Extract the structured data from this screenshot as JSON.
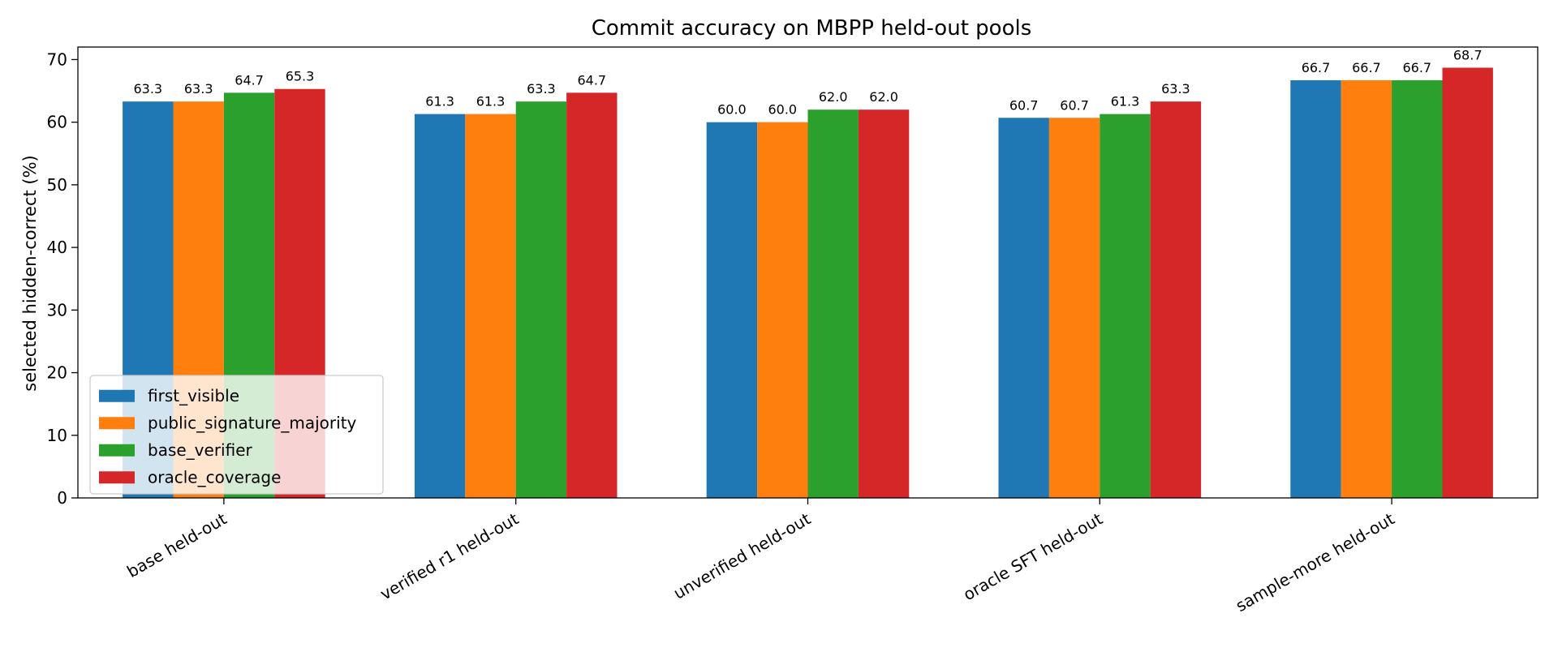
{
  "chart_data": {
    "type": "bar",
    "title": "Commit accuracy on MBPP held-out pools",
    "xlabel": "",
    "ylabel": "selected hidden-correct (%)",
    "ylim": [
      0,
      72
    ],
    "yticks": [
      0,
      10,
      20,
      30,
      40,
      50,
      60,
      70
    ],
    "grid": false,
    "legend_position": "lower-left",
    "categories": [
      "base held-out",
      "verified r1 held-out",
      "unverified held-out",
      "oracle SFT held-out",
      "sample-more held-out"
    ],
    "series": [
      {
        "name": "first_visible",
        "color": "#1f77b4",
        "values": [
          63.3,
          61.3,
          60.0,
          60.7,
          66.7
        ]
      },
      {
        "name": "public_signature_majority",
        "color": "#ff7f0e",
        "values": [
          63.3,
          61.3,
          60.0,
          60.7,
          66.7
        ]
      },
      {
        "name": "base_verifier",
        "color": "#2ca02c",
        "values": [
          64.7,
          63.3,
          62.0,
          61.3,
          66.7
        ]
      },
      {
        "name": "oracle_coverage",
        "color": "#d62728",
        "values": [
          65.3,
          64.7,
          62.0,
          63.3,
          68.7
        ]
      }
    ]
  }
}
